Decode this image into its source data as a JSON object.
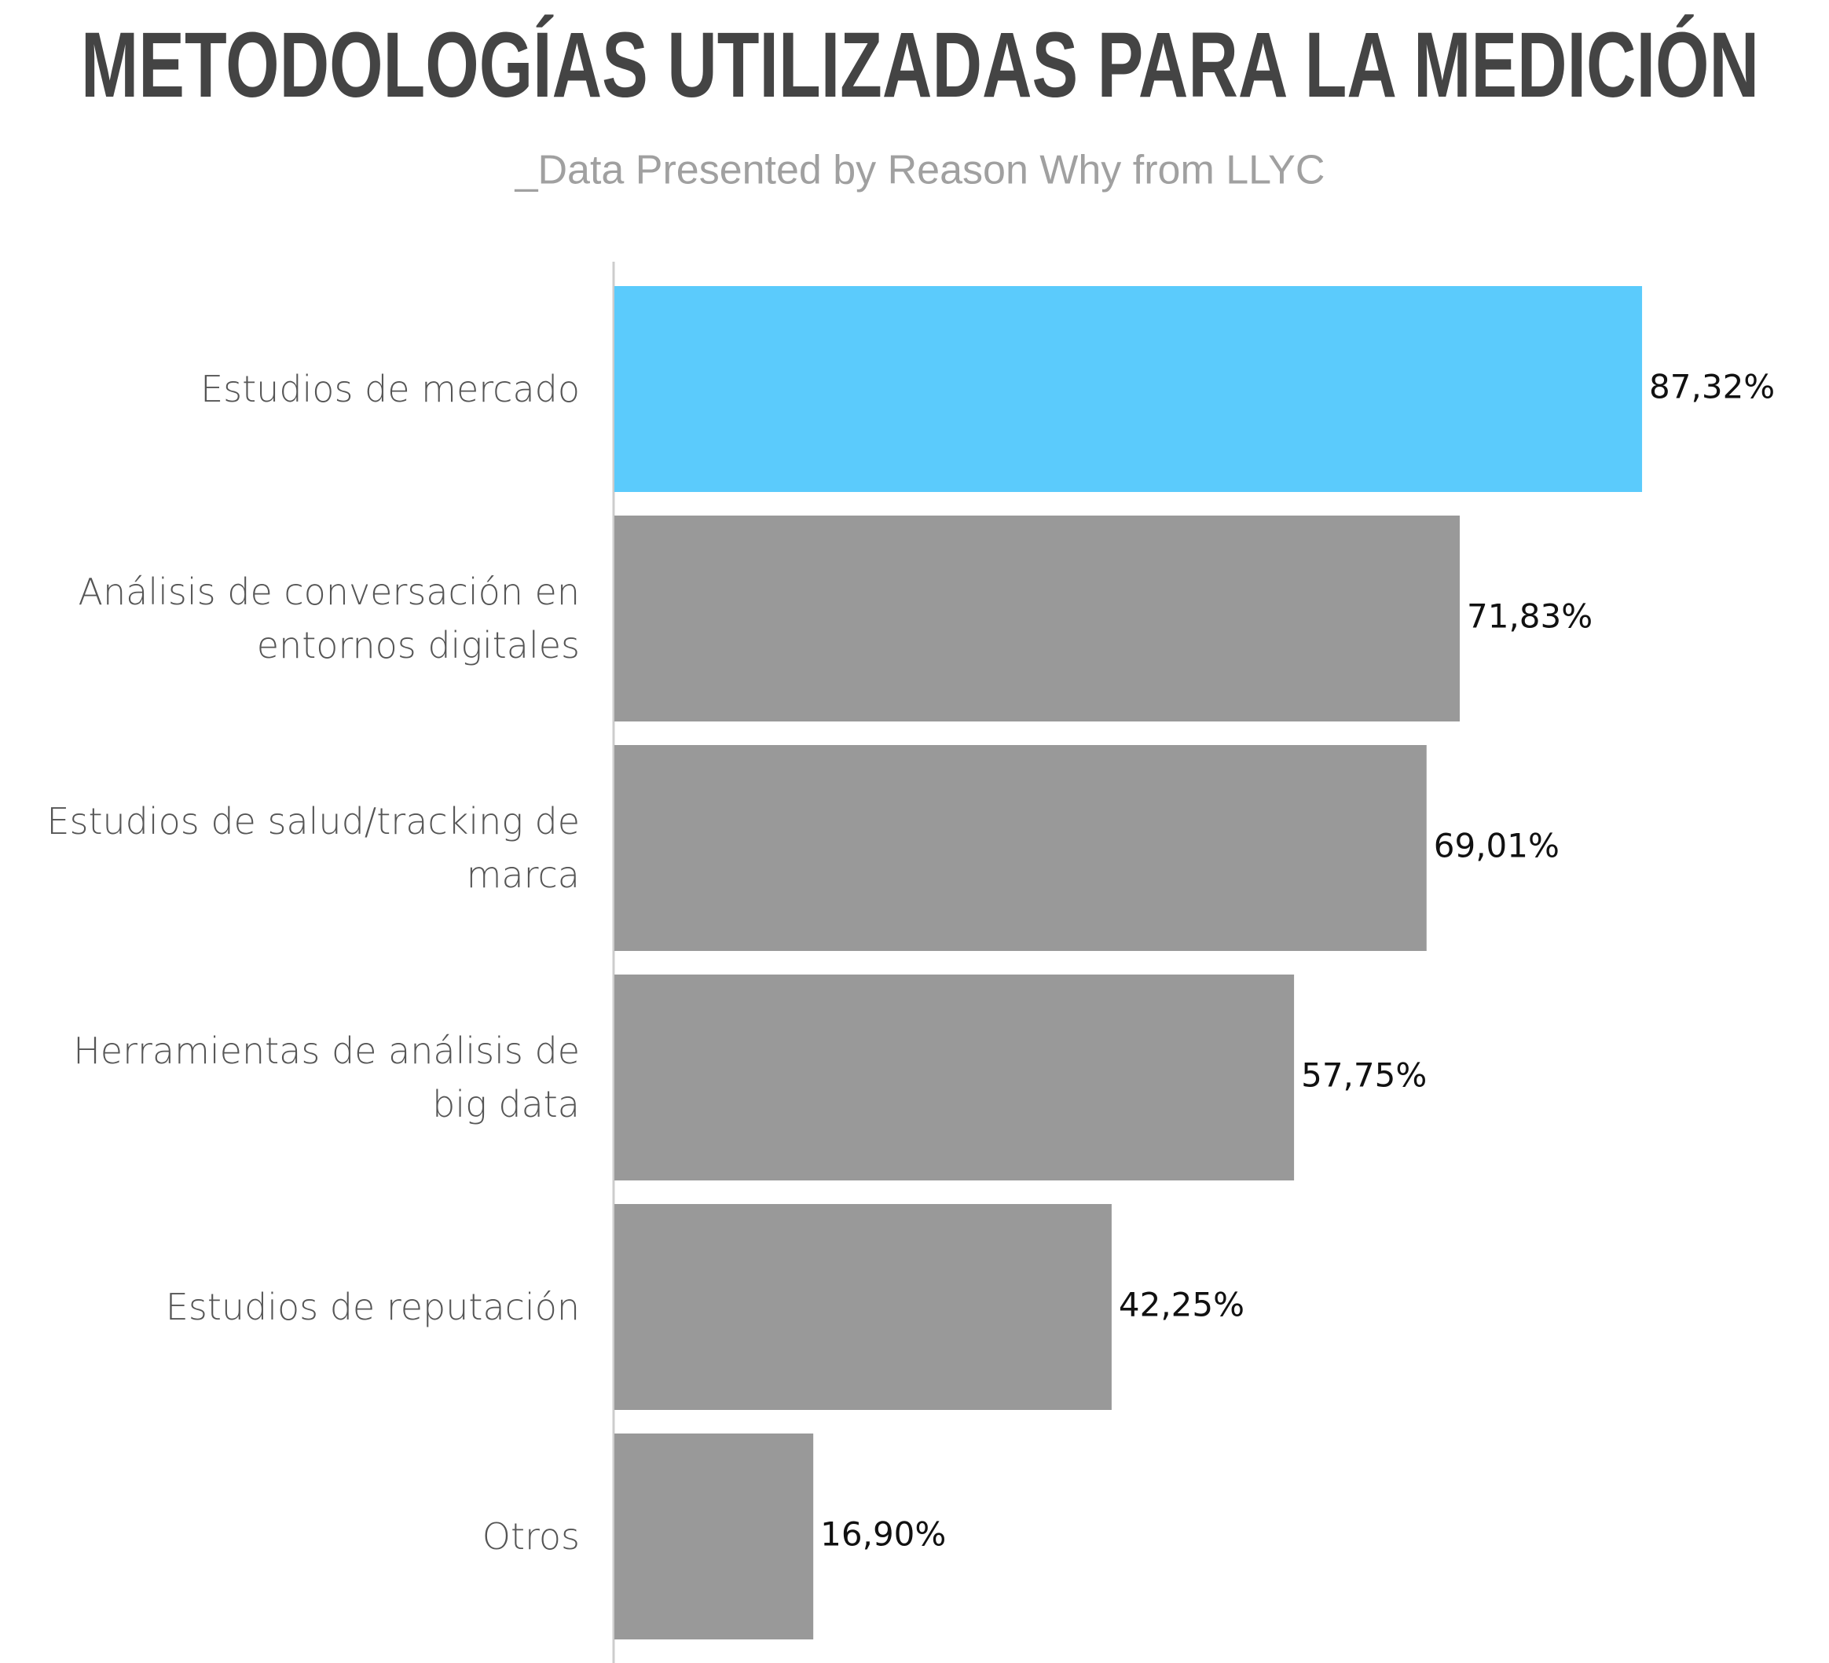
{
  "chart_data": {
    "type": "hbar",
    "title": "METODOLOGÍAS UTILIZADAS PARA LA MEDICIÓN",
    "subtitle": "_Data Presented by Reason Why from LLYC",
    "categories": [
      "Estudios de mercado",
      "Análisis de conversación en entornos digitales",
      "Estudios de salud/tracking de marca",
      "Herramientas de análisis de big data",
      "Estudios de reputación",
      "Otros"
    ],
    "values": [
      87.32,
      71.83,
      69.01,
      57.75,
      42.25,
      16.9
    ],
    "value_labels": [
      "87,32%",
      "71,83%",
      "69,01%",
      "57,75%",
      "42,25%",
      "16,90%"
    ],
    "colors": [
      "#5bcbfc",
      "#999999",
      "#999999",
      "#999999",
      "#999999",
      "#999999"
    ],
    "xlim": [
      0,
      100
    ]
  }
}
